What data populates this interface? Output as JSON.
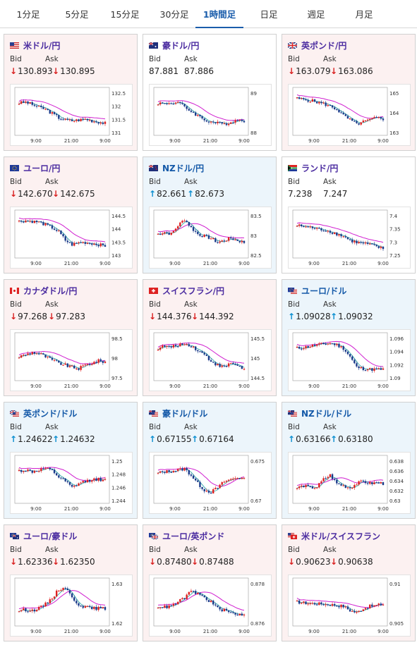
{
  "tabs": [
    {
      "label": "1分足"
    },
    {
      "label": "5分足"
    },
    {
      "label": "15分足"
    },
    {
      "label": "30分足"
    },
    {
      "label": "1時間足",
      "active": true
    },
    {
      "label": "日足"
    },
    {
      "label": "週足"
    },
    {
      "label": "月足"
    }
  ],
  "labels": {
    "bid": "Bid",
    "ask": "Ask"
  },
  "colors": {
    "candle_up": "#e02020",
    "candle_down": "#1a3a8a",
    "ma_long": "#d020d0",
    "ma_short": "#20a0a0",
    "down_arrow": "#d92020",
    "up_arrow": "#0a8ed0",
    "active_tab": "#1a5dab"
  },
  "cards": [
    {
      "name": "米ドル/円",
      "flag": "us-flag",
      "bid": "130.893",
      "ask": "130.895",
      "bid_dir": "down",
      "ask_dir": "down",
      "bg": "down",
      "ylabels": [
        "132.5",
        "132",
        "131.5",
        "131"
      ],
      "xlabels": [
        "9:00",
        "21:00",
        "9:00"
      ]
    },
    {
      "name": "豪ドル/円",
      "flag": "au-flag",
      "bid": "87.881",
      "ask": "87.886",
      "bid_dir": "none",
      "ask_dir": "none",
      "bg": "neutral",
      "ylabels": [
        "89",
        "88"
      ],
      "xlabels": [
        "9:00",
        "21:00",
        "9:00"
      ]
    },
    {
      "name": "英ポンド/円",
      "flag": "gb-flag",
      "bid": "163.079",
      "ask": "163.086",
      "bid_dir": "down",
      "ask_dir": "down",
      "bg": "down",
      "ylabels": [
        "165",
        "164",
        "163"
      ],
      "xlabels": [
        "9:00",
        "21:00",
        "9:00"
      ]
    },
    {
      "name": "ユーロ/円",
      "flag": "eu-flag",
      "bid": "142.670",
      "ask": "142.675",
      "bid_dir": "down",
      "ask_dir": "down",
      "bg": "down",
      "ylabels": [
        "144.5",
        "144",
        "143.5",
        "143"
      ],
      "xlabels": [
        "9:00",
        "21:00",
        "9:00"
      ]
    },
    {
      "name": "NZドル/円",
      "flag": "nz-flag",
      "bid": "82.661",
      "ask": "82.673",
      "bid_dir": "up",
      "ask_dir": "up",
      "bg": "up",
      "ylabels": [
        "83.5",
        "83",
        "82.5"
      ],
      "xlabels": [
        "9:00",
        "21:00",
        "9:00"
      ]
    },
    {
      "name": "ランド/円",
      "flag": "za-flag",
      "bid": "7.238",
      "ask": "7.247",
      "bid_dir": "none",
      "ask_dir": "none",
      "bg": "neutral",
      "ylabels": [
        "7.4",
        "7.35",
        "7.3",
        "7.25"
      ],
      "xlabels": [
        "9:00",
        "21:00",
        "9:00"
      ]
    },
    {
      "name": "カナダドル/円",
      "flag": "ca-flag",
      "bid": "97.268",
      "ask": "97.283",
      "bid_dir": "down",
      "ask_dir": "down",
      "bg": "down",
      "ylabels": [
        "98.5",
        "98",
        "97.5"
      ],
      "xlabels": [
        "9:00",
        "21:00",
        "9:00"
      ]
    },
    {
      "name": "スイスフラン/円",
      "flag": "ch-flag",
      "bid": "144.376",
      "ask": "144.392",
      "bid_dir": "down",
      "ask_dir": "down",
      "bg": "down",
      "ylabels": [
        "145.5",
        "145",
        "144.5"
      ],
      "xlabels": [
        "9:00",
        "21:00",
        "9:00"
      ]
    },
    {
      "name": "ユーロ/ドル",
      "flag": "eu-us-flag",
      "bid": "1.09028",
      "ask": "1.09032",
      "bid_dir": "up",
      "ask_dir": "up",
      "bg": "up",
      "ylabels": [
        "1.096",
        "1.094",
        "1.092",
        "1.09"
      ],
      "xlabels": [
        "9:00",
        "21:00",
        "9:00"
      ]
    },
    {
      "name": "英ポンド/ドル",
      "flag": "gb-us-flag",
      "bid": "1.24622",
      "ask": "1.24632",
      "bid_dir": "up",
      "ask_dir": "up",
      "bg": "up",
      "ylabels": [
        "1.25",
        "1.248",
        "1.246",
        "1.244"
      ],
      "xlabels": [
        "9:00",
        "21:00",
        "9:00"
      ]
    },
    {
      "name": "豪ドル/ドル",
      "flag": "au-us-flag",
      "bid": "0.67155",
      "ask": "0.67164",
      "bid_dir": "up",
      "ask_dir": "up",
      "bg": "up",
      "ylabels": [
        "0.675",
        "0.67"
      ],
      "xlabels": [
        "9:00",
        "21:00",
        "9:00"
      ]
    },
    {
      "name": "NZドル/ドル",
      "flag": "nz-us-flag",
      "bid": "0.63166",
      "ask": "0.63180",
      "bid_dir": "up",
      "ask_dir": "up",
      "bg": "up",
      "ylabels": [
        "0.638",
        "0.636",
        "0.634",
        "0.632",
        "0.63"
      ],
      "xlabels": [
        "9:00",
        "21:00",
        "9:00"
      ]
    },
    {
      "name": "ユーロ/豪ドル",
      "flag": "eu-au-flag",
      "bid": "1.62336",
      "ask": "1.62350",
      "bid_dir": "down",
      "ask_dir": "down",
      "bg": "down",
      "ylabels": [
        "1.63",
        "1.62"
      ],
      "xlabels": [
        "9:00",
        "21:00",
        "9:00"
      ]
    },
    {
      "name": "ユーロ/英ポンド",
      "flag": "eu-gb-flag",
      "bid": "0.87480",
      "ask": "0.87488",
      "bid_dir": "down",
      "ask_dir": "down",
      "bg": "down",
      "ylabels": [
        "0.878",
        "0.876"
      ],
      "xlabels": [
        "9:00",
        "21:00",
        "9:00"
      ]
    },
    {
      "name": "米ドル/スイスフラン",
      "flag": "us-ch-flag",
      "bid": "0.90623",
      "ask": "0.90638",
      "bid_dir": "down",
      "ask_dir": "down",
      "bg": "down",
      "ylabels": [
        "0.91",
        "0.905"
      ],
      "xlabels": [
        "9:00",
        "21:00",
        "9:00"
      ]
    }
  ]
}
